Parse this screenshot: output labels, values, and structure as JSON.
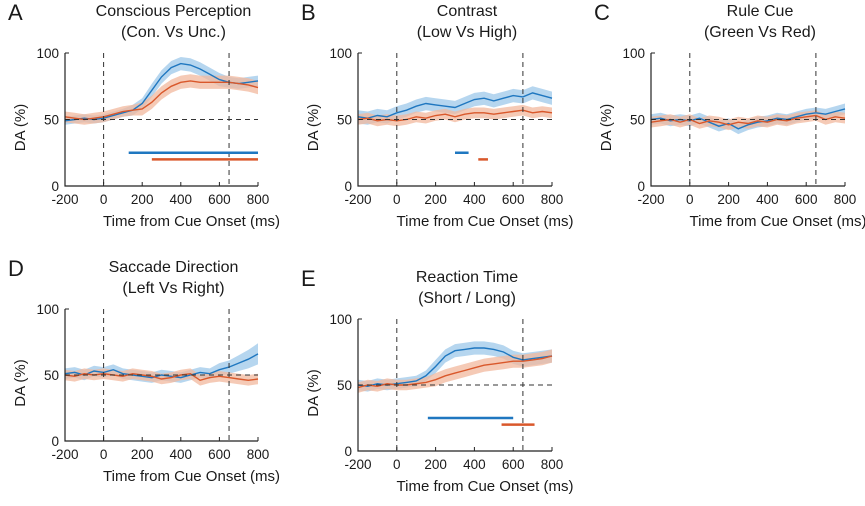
{
  "chart_data": [
    {
      "type": "line",
      "panel": "A",
      "title": [
        "Conscious Perception",
        "(Con. Vs Unc.)"
      ],
      "xlabel": "Time from Cue Onset (ms)",
      "ylabel": "DA (%)",
      "xlim": [
        -200,
        800
      ],
      "ylim": [
        0,
        100
      ],
      "xticks": [
        -200,
        0,
        200,
        400,
        600,
        800
      ],
      "yticks": [
        0,
        50,
        100
      ],
      "vlines": [
        0,
        650
      ],
      "hline": 50,
      "series": [
        {
          "name": "blue",
          "color": "#1f77c0",
          "band": "#9ec8ea",
          "x": [
            -200,
            -150,
            -100,
            -50,
            0,
            50,
            100,
            150,
            200,
            250,
            300,
            350,
            400,
            450,
            500,
            550,
            600,
            650,
            700,
            750,
            800
          ],
          "y": [
            49,
            50,
            51,
            50,
            51,
            53,
            55,
            57,
            62,
            72,
            82,
            89,
            92,
            91,
            88,
            84,
            80,
            78,
            77,
            78,
            79
          ],
          "err": [
            3,
            3,
            3,
            3,
            3,
            3,
            3,
            4,
            4,
            5,
            5,
            5,
            5,
            5,
            5,
            5,
            5,
            4,
            4,
            4,
            4
          ]
        },
        {
          "name": "orange",
          "color": "#d9582b",
          "band": "#f2b89e",
          "x": [
            -200,
            -150,
            -100,
            -50,
            0,
            50,
            100,
            150,
            200,
            250,
            300,
            350,
            400,
            450,
            500,
            550,
            600,
            650,
            700,
            750,
            800
          ],
          "y": [
            52,
            51,
            50,
            51,
            52,
            54,
            56,
            57,
            58,
            63,
            70,
            75,
            78,
            79,
            78,
            78,
            78,
            78,
            77,
            76,
            74
          ],
          "err": [
            4,
            4,
            4,
            4,
            4,
            4,
            4,
            4,
            5,
            5,
            5,
            5,
            5,
            5,
            5,
            5,
            5,
            5,
            5,
            5,
            5
          ]
        }
      ],
      "sig_bars": [
        {
          "color": "#1f77c0",
          "start": 130,
          "end": 800,
          "y": 25
        },
        {
          "color": "#d9582b",
          "start": 250,
          "end": 800,
          "y": 20
        }
      ]
    },
    {
      "type": "line",
      "panel": "B",
      "title": [
        "Contrast",
        "(Low Vs High)"
      ],
      "xlabel": "Time from Cue Onset (ms)",
      "ylabel": "DA (%)",
      "xlim": [
        -200,
        800
      ],
      "ylim": [
        0,
        100
      ],
      "xticks": [
        -200,
        0,
        200,
        400,
        600,
        800
      ],
      "yticks": [
        0,
        50,
        100
      ],
      "vlines": [
        0,
        650
      ],
      "hline": 50,
      "series": [
        {
          "name": "blue",
          "color": "#1f77c0",
          "band": "#9ec8ea",
          "x": [
            -200,
            -150,
            -100,
            -50,
            0,
            50,
            100,
            150,
            200,
            250,
            300,
            350,
            400,
            450,
            500,
            550,
            600,
            650,
            700,
            750,
            800
          ],
          "y": [
            52,
            51,
            53,
            52,
            55,
            57,
            60,
            62,
            61,
            60,
            59,
            62,
            65,
            66,
            64,
            66,
            68,
            67,
            70,
            68,
            66
          ],
          "err": [
            5,
            5,
            5,
            5,
            5,
            5,
            5,
            5,
            5,
            5,
            5,
            5,
            5,
            5,
            5,
            5,
            5,
            5,
            5,
            5,
            5
          ]
        },
        {
          "name": "orange",
          "color": "#d9582b",
          "band": "#f2b89e",
          "x": [
            -200,
            -150,
            -100,
            -50,
            0,
            50,
            100,
            150,
            200,
            250,
            300,
            350,
            400,
            450,
            500,
            550,
            600,
            650,
            700,
            750,
            800
          ],
          "y": [
            50,
            51,
            49,
            50,
            49,
            50,
            52,
            51,
            53,
            54,
            52,
            54,
            55,
            55,
            54,
            55,
            56,
            57,
            55,
            56,
            55
          ],
          "err": [
            4,
            4,
            4,
            4,
            4,
            4,
            4,
            4,
            4,
            4,
            4,
            4,
            4,
            4,
            4,
            4,
            4,
            4,
            4,
            4,
            4
          ]
        }
      ],
      "sig_bars": [
        {
          "color": "#1f77c0",
          "start": 300,
          "end": 370,
          "y": 25
        },
        {
          "color": "#d9582b",
          "start": 420,
          "end": 470,
          "y": 20
        }
      ]
    },
    {
      "type": "line",
      "panel": "C",
      "title": [
        "Rule Cue",
        "(Green Vs Red)"
      ],
      "xlabel": "Time from Cue Onset (ms)",
      "ylabel": "DA (%)",
      "xlim": [
        -200,
        800
      ],
      "ylim": [
        0,
        100
      ],
      "xticks": [
        -200,
        0,
        200,
        400,
        600,
        800
      ],
      "yticks": [
        0,
        50,
        100
      ],
      "vlines": [
        0,
        650
      ],
      "hline": 50,
      "series": [
        {
          "name": "blue",
          "color": "#1f77c0",
          "band": "#9ec8ea",
          "x": [
            -200,
            -150,
            -100,
            -50,
            0,
            50,
            100,
            150,
            200,
            250,
            300,
            350,
            400,
            450,
            500,
            550,
            600,
            650,
            700,
            750,
            800
          ],
          "y": [
            50,
            51,
            49,
            50,
            49,
            51,
            48,
            45,
            47,
            43,
            46,
            48,
            49,
            51,
            50,
            52,
            54,
            55,
            54,
            56,
            58
          ],
          "err": [
            4,
            4,
            4,
            4,
            4,
            4,
            4,
            4,
            4,
            4,
            4,
            4,
            4,
            4,
            4,
            4,
            4,
            4,
            4,
            4,
            4
          ]
        },
        {
          "name": "orange",
          "color": "#d9582b",
          "band": "#f2b89e",
          "x": [
            -200,
            -150,
            -100,
            -50,
            0,
            50,
            100,
            150,
            200,
            250,
            300,
            350,
            400,
            450,
            500,
            550,
            600,
            650,
            700,
            750,
            800
          ],
          "y": [
            48,
            49,
            50,
            48,
            50,
            47,
            49,
            48,
            46,
            48,
            47,
            49,
            48,
            50,
            49,
            51,
            52,
            53,
            50,
            52,
            51
          ],
          "err": [
            4,
            4,
            4,
            4,
            4,
            4,
            4,
            4,
            4,
            4,
            4,
            4,
            4,
            4,
            4,
            4,
            4,
            4,
            4,
            4,
            4
          ]
        }
      ],
      "sig_bars": []
    },
    {
      "type": "line",
      "panel": "D",
      "title": [
        "Saccade Direction",
        "(Left Vs Right)"
      ],
      "xlabel": "Time from Cue Onset (ms)",
      "ylabel": "DA (%)",
      "xlim": [
        -200,
        800
      ],
      "ylim": [
        0,
        100
      ],
      "xticks": [
        -200,
        0,
        200,
        400,
        600,
        800
      ],
      "yticks": [
        0,
        50,
        100
      ],
      "vlines": [
        0,
        650
      ],
      "hline": 50,
      "series": [
        {
          "name": "blue",
          "color": "#1f77c0",
          "band": "#9ec8ea",
          "x": [
            -200,
            -150,
            -100,
            -50,
            0,
            50,
            100,
            150,
            200,
            250,
            300,
            350,
            400,
            450,
            500,
            550,
            600,
            650,
            700,
            750,
            800
          ],
          "y": [
            51,
            52,
            50,
            53,
            52,
            54,
            51,
            50,
            49,
            48,
            50,
            49,
            48,
            50,
            52,
            51,
            54,
            56,
            59,
            62,
            66
          ],
          "err": [
            4,
            4,
            4,
            4,
            4,
            4,
            4,
            4,
            4,
            4,
            4,
            4,
            4,
            4,
            4,
            4,
            5,
            5,
            6,
            7,
            8
          ]
        },
        {
          "name": "orange",
          "color": "#d9582b",
          "band": "#f2b89e",
          "x": [
            -200,
            -150,
            -100,
            -50,
            0,
            50,
            100,
            150,
            200,
            250,
            300,
            350,
            400,
            450,
            500,
            550,
            600,
            650,
            700,
            750,
            800
          ],
          "y": [
            50,
            49,
            51,
            50,
            51,
            50,
            49,
            51,
            50,
            49,
            47,
            48,
            50,
            51,
            46,
            48,
            49,
            48,
            47,
            46,
            47
          ],
          "err": [
            4,
            4,
            4,
            4,
            4,
            4,
            4,
            4,
            4,
            4,
            4,
            4,
            4,
            4,
            4,
            4,
            4,
            4,
            4,
            4,
            4
          ]
        }
      ],
      "sig_bars": []
    },
    {
      "type": "line",
      "panel": "E",
      "title": [
        "Reaction Time",
        "(Short / Long)"
      ],
      "xlabel": "Time from Cue Onset (ms)",
      "ylabel": "DA (%)",
      "xlim": [
        -200,
        800
      ],
      "ylim": [
        0,
        100
      ],
      "xticks": [
        -200,
        0,
        200,
        400,
        600,
        800
      ],
      "yticks": [
        0,
        50,
        100
      ],
      "vlines": [
        0,
        650
      ],
      "hline": 50,
      "series": [
        {
          "name": "blue",
          "color": "#1f77c0",
          "band": "#9ec8ea",
          "x": [
            -200,
            -150,
            -100,
            -50,
            0,
            50,
            100,
            150,
            200,
            250,
            300,
            350,
            400,
            450,
            500,
            550,
            600,
            650,
            700,
            750,
            800
          ],
          "y": [
            50,
            49,
            51,
            50,
            51,
            52,
            53,
            57,
            64,
            72,
            76,
            77,
            78,
            78,
            77,
            75,
            71,
            69,
            70,
            71,
            72
          ],
          "err": [
            4,
            4,
            4,
            4,
            4,
            4,
            4,
            4,
            5,
            5,
            5,
            5,
            5,
            5,
            5,
            5,
            5,
            5,
            5,
            5,
            5
          ]
        },
        {
          "name": "orange",
          "color": "#d9582b",
          "band": "#f2b89e",
          "x": [
            -200,
            -150,
            -100,
            -50,
            0,
            50,
            100,
            150,
            200,
            250,
            300,
            350,
            400,
            450,
            500,
            550,
            600,
            650,
            700,
            750,
            800
          ],
          "y": [
            48,
            50,
            49,
            51,
            50,
            50,
            51,
            52,
            54,
            57,
            59,
            61,
            63,
            65,
            66,
            67,
            68,
            68,
            69,
            70,
            72
          ],
          "err": [
            4,
            4,
            4,
            4,
            4,
            4,
            4,
            4,
            5,
            5,
            5,
            5,
            5,
            5,
            5,
            5,
            5,
            5,
            5,
            5,
            5
          ]
        }
      ],
      "sig_bars": [
        {
          "color": "#1f77c0",
          "start": 160,
          "end": 600,
          "y": 25
        },
        {
          "color": "#d9582b",
          "start": 540,
          "end": 710,
          "y": 20
        }
      ]
    }
  ]
}
